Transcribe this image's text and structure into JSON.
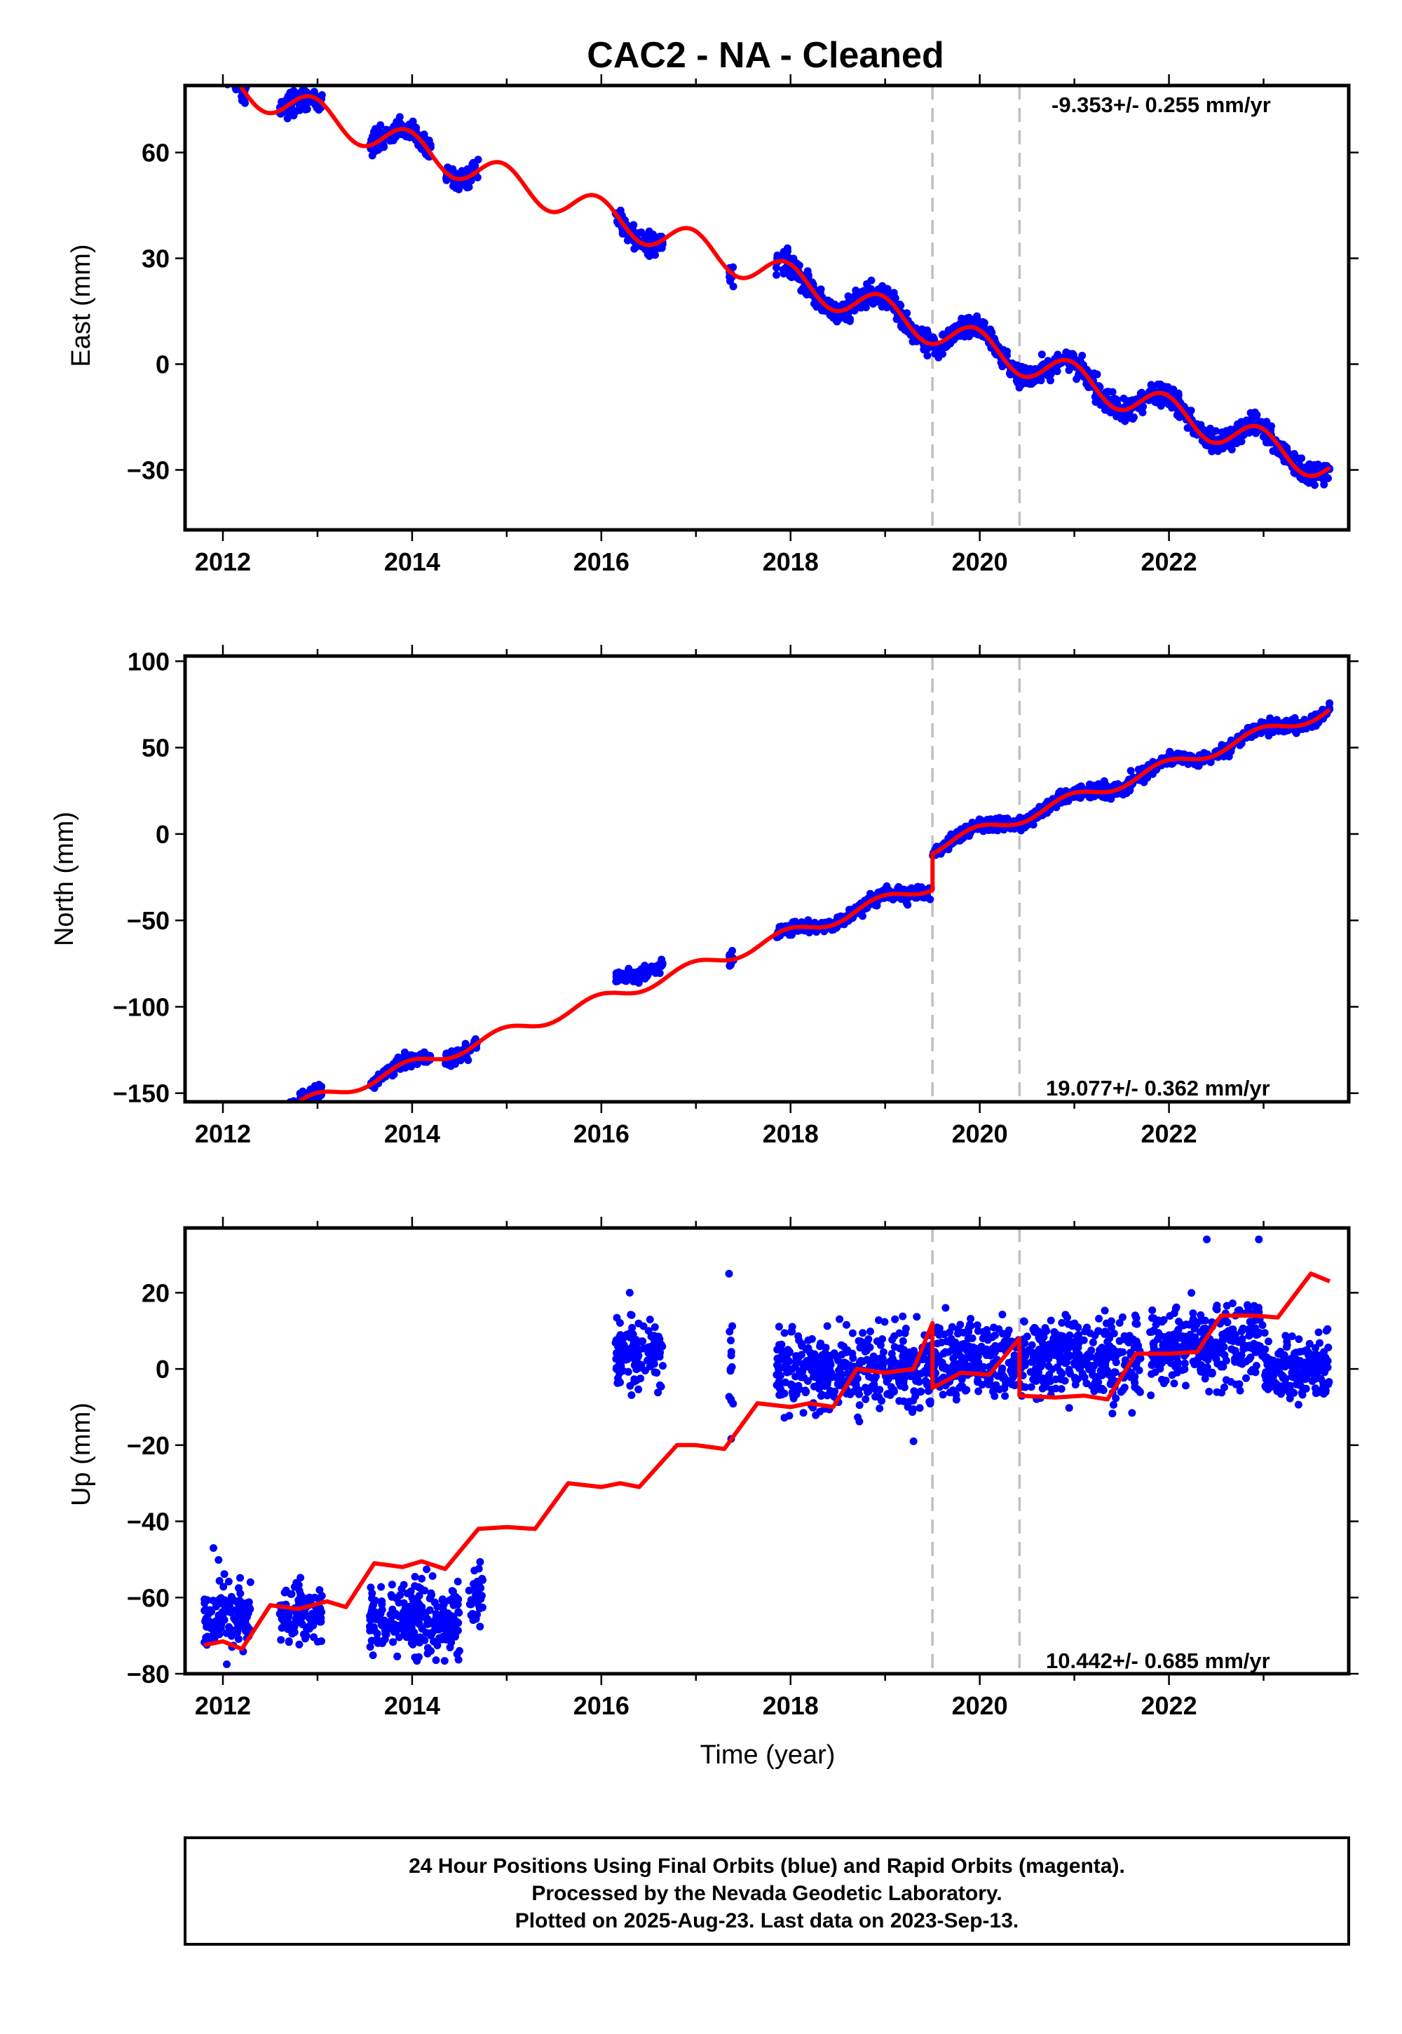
{
  "title": "CAC2  - NA - Cleaned",
  "xlabel": "Time (year)",
  "colors": {
    "data": "#0000ff",
    "model": "#ff0000",
    "break_line": "#c0c0c0",
    "frame": "#000000"
  },
  "footer": {
    "line1": "24 Hour Positions Using Final Orbits (blue) and Rapid Orbits (magenta).",
    "line2": "Processed by the Nevada Geodetic Laboratory.",
    "line3": "Plotted on 2025-Aug-23. Last data on 2023-Sep-13."
  },
  "chart_data": [
    {
      "type": "scatter",
      "component": "east",
      "ylabel": "East (mm)",
      "rate_label": "-9.353+/- 0.255 mm/yr",
      "xlim": [
        2011.6,
        2023.9
      ],
      "ylim": [
        -47,
        79
      ],
      "yticks": [
        -30,
        0,
        30,
        60
      ],
      "xticks": [
        2012,
        2014,
        2016,
        2018,
        2020,
        2022
      ],
      "breaks": [
        2019.5,
        2020.42
      ],
      "rate": -9.353,
      "offset": 82,
      "annual_amp": 4.5,
      "noise": 1.5,
      "jumps": [],
      "model_jumps": [],
      "model_x_range": [
        2011.8,
        2023.7
      ],
      "data_segments": [
        [
          2011.8,
          2012.25
        ],
        [
          2012.6,
          2013.05
        ],
        [
          2013.55,
          2014.2
        ],
        [
          2014.35,
          2014.7
        ],
        [
          2016.15,
          2016.65
        ],
        [
          2017.35,
          2017.4
        ],
        [
          2017.85,
          2023.7
        ]
      ]
    },
    {
      "type": "scatter",
      "component": "north",
      "ylabel": "North (mm)",
      "rate_label": "19.077+/- 0.362 mm/yr",
      "xlim": [
        2011.6,
        2023.9
      ],
      "ylim": [
        -155,
        103
      ],
      "yticks": [
        -150,
        -100,
        -50,
        0,
        50,
        100
      ],
      "xticks": [
        2012,
        2014,
        2016,
        2018,
        2020,
        2022
      ],
      "breaks": [
        2019.5,
        2020.42
      ],
      "rate": 19.077,
      "offset": -176,
      "annual_amp": 3.5,
      "noise": 1.8,
      "jumps": [
        {
          "year": 2019.5,
          "size": 21
        },
        {
          "year": 2016.1,
          "size": 10,
          "until": 2016.7
        }
      ],
      "model_jumps": [
        {
          "year": 2019.5,
          "size": 21
        }
      ],
      "model_x_range": [
        2011.8,
        2023.7
      ],
      "data_segments": [
        [
          2011.8,
          2012.25
        ],
        [
          2012.6,
          2013.05
        ],
        [
          2013.55,
          2014.2
        ],
        [
          2014.35,
          2014.7
        ],
        [
          2016.15,
          2016.65
        ],
        [
          2017.35,
          2017.4
        ],
        [
          2017.85,
          2023.7
        ]
      ]
    },
    {
      "type": "scatter",
      "component": "up",
      "ylabel": "Up (mm)",
      "rate_label": "10.442+/- 0.685 mm/yr",
      "xlim": [
        2011.6,
        2023.9
      ],
      "ylim": [
        -80,
        37
      ],
      "yticks": [
        -80,
        -60,
        -40,
        -20,
        0,
        20
      ],
      "xticks": [
        2012,
        2014,
        2016,
        2018,
        2020,
        2022
      ],
      "breaks": [
        2019.5,
        2020.42
      ],
      "rate": 10.442,
      "offset": -95,
      "annual_amp": 2.5,
      "noise": 4.5,
      "model_x_range": [
        2011.8,
        2023.7
      ],
      "up_data": [
        {
          "from": 2011.8,
          "to": 2012.3,
          "center": -65,
          "spread": 4.5
        },
        {
          "from": 2012.6,
          "to": 2013.05,
          "center": -65,
          "spread": 4.5
        },
        {
          "from": 2013.55,
          "to": 2014.5,
          "center": -66,
          "spread": 4.5
        },
        {
          "from": 2014.6,
          "to": 2014.75,
          "center": -60,
          "spread": 4
        },
        {
          "from": 2016.15,
          "to": 2016.65,
          "center": 4,
          "spread": 4
        },
        {
          "from": 2017.35,
          "to": 2017.4,
          "center": 0,
          "spread": 10
        },
        {
          "from": 2017.85,
          "to": 2019.5,
          "center": 0,
          "spread": 5
        },
        {
          "from": 2019.5,
          "to": 2020.42,
          "center": 2,
          "spread": 5
        },
        {
          "from": 2020.42,
          "to": 2021.7,
          "center": 3,
          "spread": 5
        },
        {
          "from": 2021.8,
          "to": 2023.0,
          "center": 6,
          "spread": 5
        },
        {
          "from": 2023.0,
          "to": 2023.7,
          "center": 0,
          "spread": 4
        }
      ],
      "up_model": [
        [
          2011.8,
          -72.5
        ],
        [
          2012.0,
          -71.5
        ],
        [
          2012.2,
          -73.5
        ],
        [
          2012.5,
          -62
        ],
        [
          2012.8,
          -63
        ],
        [
          2013.1,
          -61
        ],
        [
          2013.3,
          -62.5
        ],
        [
          2013.6,
          -51
        ],
        [
          2013.9,
          -52
        ],
        [
          2014.1,
          -50.5
        ],
        [
          2014.35,
          -52.5
        ],
        [
          2014.7,
          -42
        ],
        [
          2015.0,
          -41.5
        ],
        [
          2015.3,
          -42
        ],
        [
          2015.65,
          -30
        ],
        [
          2016.0,
          -31
        ],
        [
          2016.2,
          -30
        ],
        [
          2016.4,
          -31
        ],
        [
          2016.8,
          -20
        ],
        [
          2017.0,
          -20
        ],
        [
          2017.3,
          -21
        ],
        [
          2017.65,
          -9
        ],
        [
          2018.0,
          -10
        ],
        [
          2018.2,
          -9
        ],
        [
          2018.45,
          -10
        ],
        [
          2018.7,
          0
        ],
        [
          2019.0,
          -1
        ],
        [
          2019.3,
          0
        ],
        [
          2019.5,
          12
        ],
        [
          2019.5,
          -5
        ],
        [
          2019.8,
          -1
        ],
        [
          2020.1,
          -1.5
        ],
        [
          2020.42,
          8
        ],
        [
          2020.42,
          -7
        ],
        [
          2020.8,
          -7.5
        ],
        [
          2021.1,
          -7
        ],
        [
          2021.35,
          -8
        ],
        [
          2021.65,
          4
        ],
        [
          2022.0,
          4
        ],
        [
          2022.3,
          4.5
        ],
        [
          2022.55,
          14
        ],
        [
          2022.9,
          14
        ],
        [
          2023.15,
          13.5
        ],
        [
          2023.5,
          25
        ],
        [
          2023.7,
          23
        ]
      ]
    }
  ]
}
